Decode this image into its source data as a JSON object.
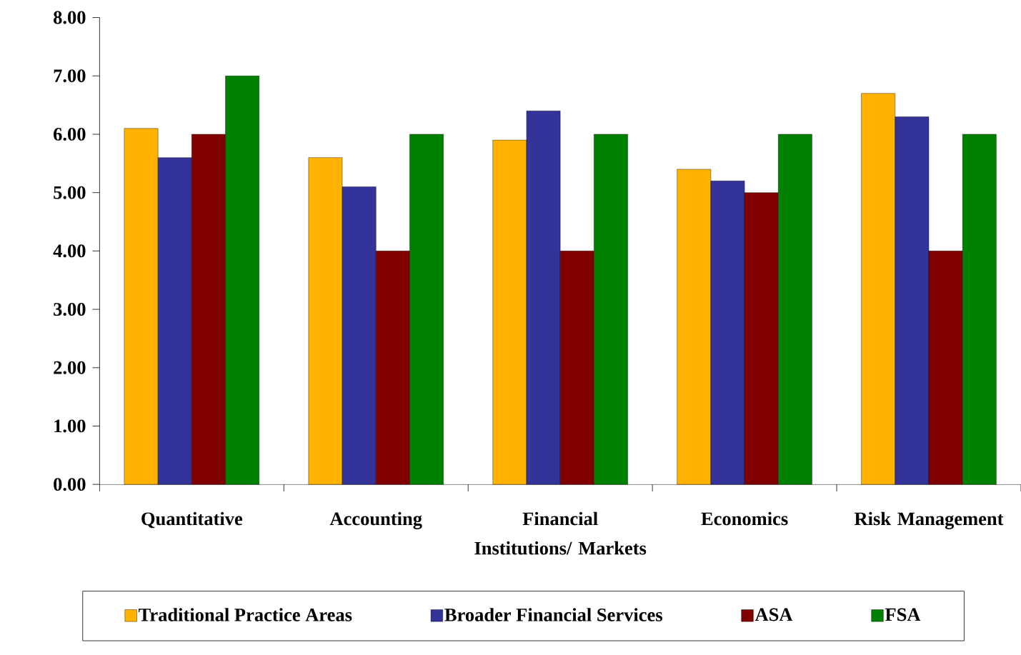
{
  "chart_data": {
    "type": "bar",
    "categories": [
      "Quantitative",
      "Accounting",
      "Financial Institutions/ Markets",
      "Economics",
      "Risk Management"
    ],
    "series": [
      {
        "name": "Traditional Practice Areas",
        "color": "#ffb300",
        "values": [
          6.1,
          5.6,
          5.9,
          5.4,
          6.7
        ]
      },
      {
        "name": "Broader Financial Services",
        "color": "#333399",
        "values": [
          5.6,
          5.1,
          6.4,
          5.2,
          6.3
        ]
      },
      {
        "name": "ASA",
        "color": "#800000",
        "values": [
          6.0,
          4.0,
          4.0,
          5.0,
          4.0
        ]
      },
      {
        "name": "FSA",
        "color": "#008000",
        "values": [
          7.0,
          6.0,
          6.0,
          6.0,
          6.0
        ]
      }
    ],
    "ylim": [
      0,
      8
    ],
    "yticks": [
      {
        "value": 0,
        "label": "0.00"
      },
      {
        "value": 1,
        "label": "1.00"
      },
      {
        "value": 2,
        "label": "2.00"
      },
      {
        "value": 3,
        "label": "3.00"
      },
      {
        "value": 4,
        "label": "4.00"
      },
      {
        "value": 5,
        "label": "5.00"
      },
      {
        "value": 6,
        "label": "6.00"
      },
      {
        "value": 7,
        "label": "7.00"
      },
      {
        "value": 8,
        "label": "8.00"
      }
    ],
    "legend": "bottom",
    "marker": "none"
  }
}
